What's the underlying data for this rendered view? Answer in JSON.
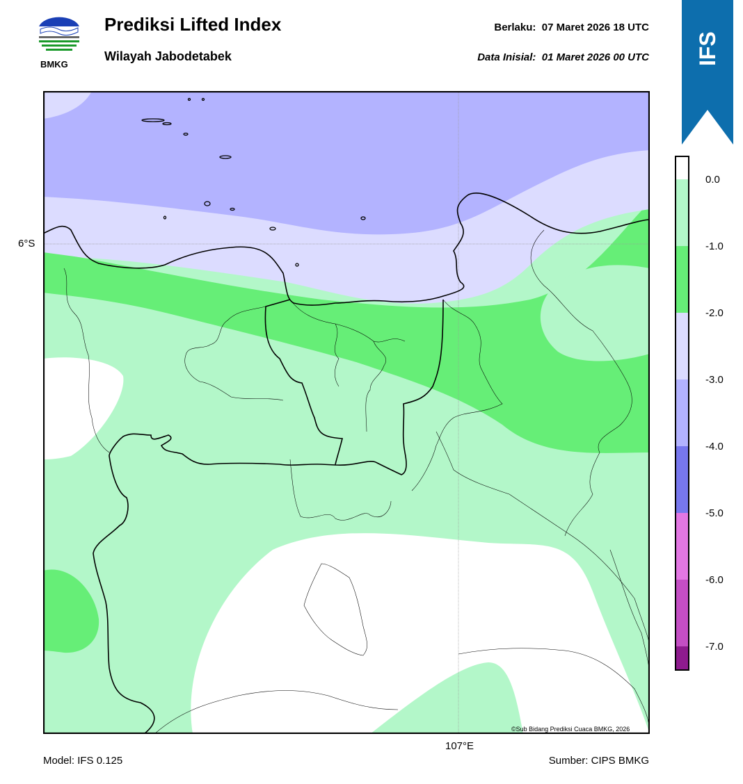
{
  "header": {
    "title": "Prediksi Lifted Index",
    "subtitle": "Wilayah Jabodetabek",
    "valid_label": "Berlaku:",
    "valid_time": "07 Maret 2026 18 UTC",
    "init_label": "Data Inisial:",
    "init_time": "01 Maret 2026 00 UTC",
    "logo_text": "BMKG",
    "model_badge": "IFS"
  },
  "map": {
    "lat_label": "6°S",
    "lon_label": "107°E",
    "copyright": "©Sub Bidang Prediksi Cuaca BMKG, 2026",
    "colors": {
      "ocean_purple": "#b3b3ff",
      "light_lavender": "#dcdcff",
      "green": "#66ee77",
      "light_green": "#b3f7c9",
      "white": "#ffffff"
    }
  },
  "colorbar": {
    "ticks": [
      "0.0",
      "-1.0",
      "-2.0",
      "-3.0",
      "-4.0",
      "-5.0",
      "-6.0",
      "-7.0"
    ],
    "colors": [
      "#b3f7c9",
      "#66ee77",
      "#dcdcff",
      "#b3b3ff",
      "#7777ee",
      "#e377e3",
      "#c44ec4",
      "#8e1b8e"
    ]
  },
  "footer": {
    "model": "Model: IFS 0.125",
    "source": "Sumber: CIPS BMKG"
  }
}
